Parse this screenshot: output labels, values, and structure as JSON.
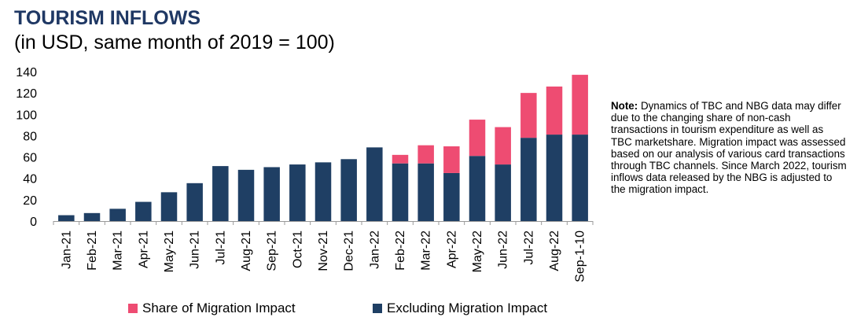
{
  "header": {
    "title": "TOURISM INFLOWS",
    "subtitle": "(in USD, same month of 2019  = 100)"
  },
  "note": {
    "label": "Note:",
    "text": " Dynamics of TBC and NBG data may differ due to the changing share of non-cash transactions in tourism expenditure as well as TBC marketshare. Migration impact was assessed based on our analysis of various card transactions through TBC channels. Since March 2022, tourism inflows data released by the NBG is adjusted to the migration impact."
  },
  "chart_data": {
    "type": "bar",
    "stacked": true,
    "categories": [
      "Jan-21",
      "Feb-21",
      "Mar-21",
      "Apr-21",
      "May-21",
      "Jun-21",
      "Jul-21",
      "Aug-21",
      "Sep-21",
      "Oct-21",
      "Nov-21",
      "Dec-21",
      "Jan-22",
      "Feb-22",
      "Mar-22",
      "Apr-22",
      "May-22",
      "Jun-22",
      "Jul-22",
      "Aug-22",
      "Sep-1-10"
    ],
    "series": [
      {
        "name": "Excluding Migration Impact",
        "color": "#1f3f64",
        "values": [
          5.5,
          7.5,
          11.5,
          18,
          27,
          35.5,
          51.5,
          48,
          50.5,
          53,
          55,
          58,
          69,
          54,
          54,
          45,
          61,
          53,
          78,
          81,
          81
        ]
      },
      {
        "name": "Share of Migration Impact",
        "color": "#ee4c72",
        "values": [
          0,
          0,
          0,
          0,
          0,
          0,
          0,
          0,
          0,
          0,
          0,
          0,
          0,
          8,
          17,
          25,
          34,
          35,
          42,
          45,
          56
        ]
      }
    ],
    "ylim": [
      0,
      140
    ],
    "yticks": [
      0,
      20,
      40,
      60,
      80,
      100,
      120,
      140
    ],
    "grid": false,
    "legend_position": "bottom"
  },
  "legend": [
    {
      "label": "Share of Migration Impact",
      "color": "#ee4c72"
    },
    {
      "label": "Excluding Migration Impact",
      "color": "#1f3f64"
    }
  ]
}
